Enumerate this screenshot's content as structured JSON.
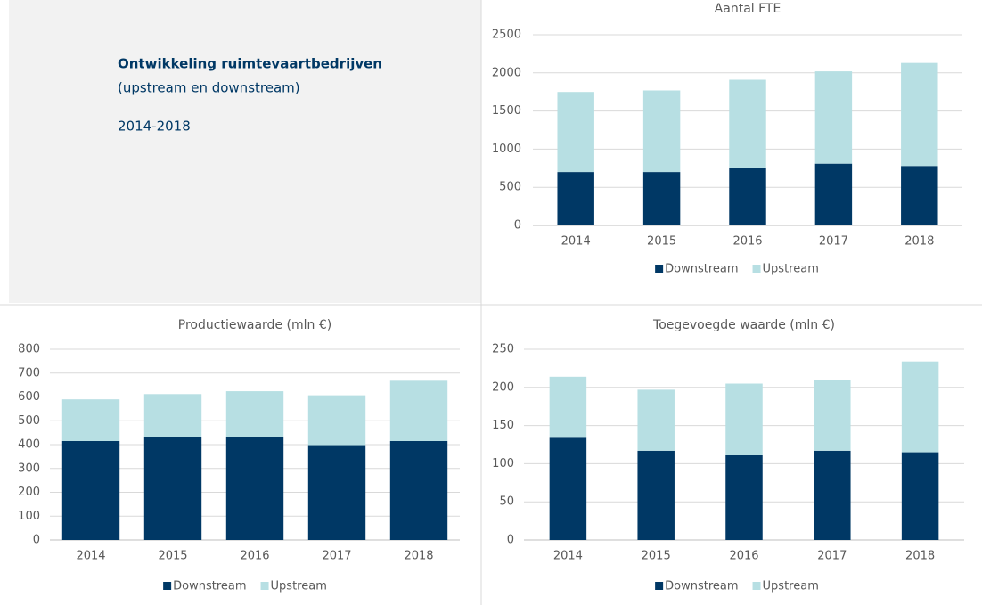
{
  "header": {
    "title": "Ontwikkeling ruimtevaartbedrijven",
    "subtitle": "(upstream en downstream)",
    "period": "2014-2018"
  },
  "chart_data": [
    {
      "type": "bar",
      "stacked": true,
      "title": "Aantal FTE",
      "categories": [
        "2014",
        "2015",
        "2016",
        "2017",
        "2018"
      ],
      "series": [
        {
          "name": "Downstream",
          "color": "#003865",
          "values": [
            700,
            700,
            760,
            810,
            780
          ]
        },
        {
          "name": "Upstream",
          "color": "#b7dfe3",
          "values": [
            1050,
            1070,
            1150,
            1210,
            1350
          ]
        }
      ],
      "ylim": [
        0,
        2500
      ],
      "yticks": [
        0,
        500,
        1000,
        1500,
        2000,
        2500
      ],
      "grid": true,
      "legend": "bottom"
    },
    {
      "type": "bar",
      "stacked": true,
      "title": "Productiewaarde  (mln €)",
      "categories": [
        "2014",
        "2015",
        "2016",
        "2017",
        "2018"
      ],
      "series": [
        {
          "name": "Downstream",
          "color": "#003865",
          "values": [
            415,
            432,
            432,
            398,
            415
          ]
        },
        {
          "name": "Upstream",
          "color": "#b7dfe3",
          "values": [
            175,
            180,
            192,
            209,
            253
          ]
        }
      ],
      "ylim": [
        0,
        800
      ],
      "yticks": [
        0,
        100,
        200,
        300,
        400,
        500,
        600,
        700,
        800
      ],
      "grid": true,
      "legend": "bottom"
    },
    {
      "type": "bar",
      "stacked": true,
      "title": "Toegevoegde waarde  (mln €)",
      "categories": [
        "2014",
        "2015",
        "2016",
        "2017",
        "2018"
      ],
      "series": [
        {
          "name": "Downstream",
          "color": "#003865",
          "values": [
            134,
            117,
            111,
            117,
            115
          ]
        },
        {
          "name": "Upstream",
          "color": "#b7dfe3",
          "values": [
            80,
            80,
            94,
            93,
            119
          ]
        }
      ],
      "ylim": [
        0,
        250
      ],
      "yticks": [
        0,
        50,
        100,
        150,
        200,
        250
      ],
      "grid": true,
      "legend": "bottom"
    }
  ]
}
